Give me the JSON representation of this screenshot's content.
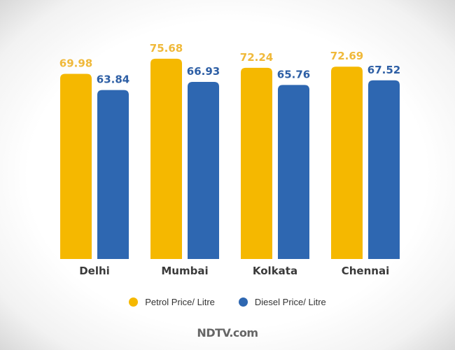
{
  "chart_data": {
    "type": "bar",
    "title": "",
    "categories": [
      "Delhi",
      "Mumbai",
      "Kolkata",
      "Chennai"
    ],
    "series": [
      {
        "name": "Petrol Price/ Litre",
        "values": [
          69.98,
          75.68,
          72.24,
          72.69
        ],
        "color": "#f5b800",
        "label_color": "#f0b93a"
      },
      {
        "name": "Diesel Price/ Litre",
        "values": [
          63.84,
          66.93,
          65.76,
          67.52
        ],
        "color": "#2e67b1",
        "label_color": "#2e5fa5"
      }
    ],
    "xlabel": "",
    "ylabel": "",
    "ylim": [
      0,
      80
    ],
    "grid": false,
    "legend": "bottom"
  },
  "legend": {
    "petrol": "Petrol Price/ Litre",
    "diesel": "Diesel Price/ Litre"
  },
  "brand": "NDTV.com"
}
